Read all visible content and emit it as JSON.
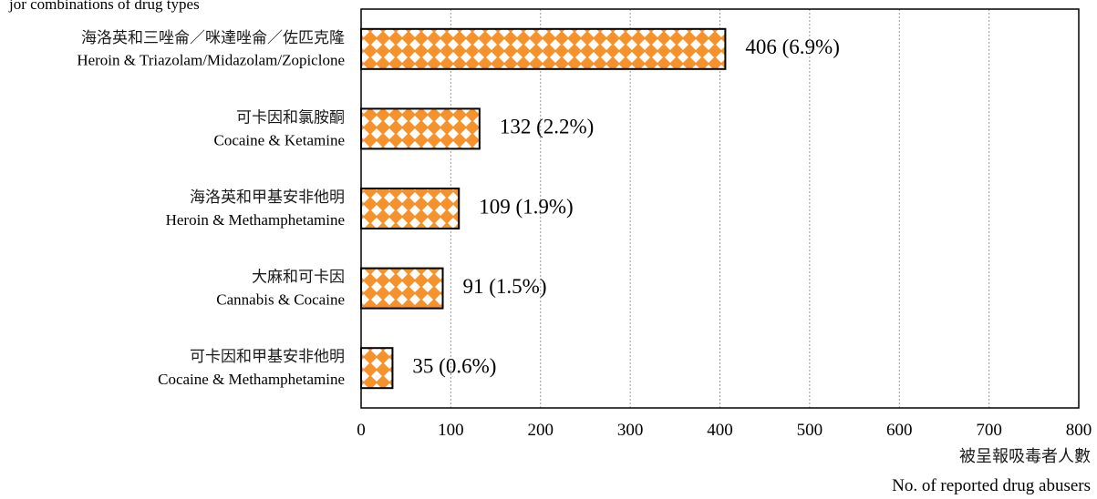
{
  "chart_data": {
    "type": "bar",
    "orientation": "horizontal",
    "subtitle_partial": "jor combinations of drug types",
    "categories": [
      {
        "zh": "海洛英和三唑侖／咪達唑侖／佐匹克隆",
        "en": "Heroin & Triazolam/Midazolam/Zopiclone"
      },
      {
        "zh": "可卡因和氯胺酮",
        "en": "Cocaine & Ketamine"
      },
      {
        "zh": "海洛英和甲基安非他明",
        "en": "Heroin & Methamphetamine"
      },
      {
        "zh": "大麻和可卡因",
        "en": "Cannabis & Cocaine"
      },
      {
        "zh": "可卡因和甲基安非他明",
        "en": "Cocaine & Methamphetamine"
      }
    ],
    "values": [
      406,
      132,
      109,
      91,
      35
    ],
    "data_labels": [
      "406 (6.9%)",
      "132 (2.2%)",
      "109 (1.9%)",
      "91 (1.5%)",
      "35 (0.6%)"
    ],
    "xlim": [
      0,
      800
    ],
    "xticks": [
      0,
      100,
      200,
      300,
      400,
      500,
      600,
      700,
      800
    ],
    "xlabel_zh": "被呈報吸毒者人數",
    "xlabel_en": "No. of reported drug abusers",
    "grid": "vertical dotted",
    "bar_color": "#f5922b",
    "bar_pattern": "white diamond checker",
    "legend": "none"
  }
}
